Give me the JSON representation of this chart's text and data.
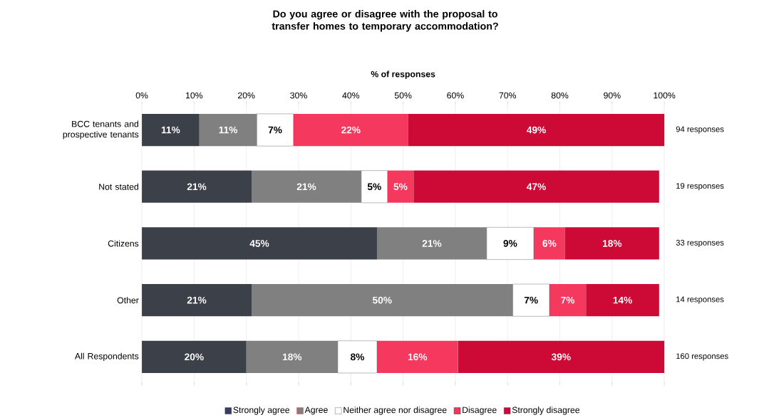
{
  "chart_data": {
    "type": "bar",
    "orientation": "horizontal",
    "stacked": true,
    "title": "Do you agree or disagree with the proposal to transfer homes to temporary accommodation?",
    "xlabel": "% of responses",
    "categories": [
      "BCC tenants and prospective tenants",
      "Not stated",
      "Citizens",
      "Other",
      "All Respondents"
    ],
    "series": [
      {
        "name": "Strongly agree",
        "color": "#3c4048",
        "values": [
          11,
          21,
          45,
          21,
          20
        ],
        "value_labels": [
          "11%",
          "21%",
          "45%",
          "21%",
          "20%"
        ]
      },
      {
        "name": "Agree",
        "color": "#808080",
        "values": [
          11,
          21,
          21,
          50,
          17.5
        ],
        "value_labels": [
          "11%",
          "21%",
          "21%",
          "50%",
          "18%"
        ]
      },
      {
        "name": "Neither agree nor disagree",
        "color": "#ffffff",
        "values": [
          7,
          5,
          9,
          7,
          7.5
        ],
        "value_labels": [
          "7%",
          "5%",
          "9%",
          "7%",
          "8%"
        ]
      },
      {
        "name": "Disagree",
        "color": "#f5385e",
        "values": [
          22,
          5,
          6,
          7,
          15.5
        ],
        "value_labels": [
          "22%",
          "5%",
          "6%",
          "7%",
          "16%"
        ]
      },
      {
        "name": "Strongly disagree",
        "color": "#cc0a35",
        "values": [
          49,
          47,
          18,
          14,
          39.5
        ],
        "value_labels": [
          "49%",
          "47%",
          "18%",
          "14%",
          "39%"
        ]
      }
    ],
    "xlim": [
      0,
      100
    ],
    "xticks": [
      {
        "value": 0,
        "label": "0%"
      },
      {
        "value": 10,
        "label": "10%"
      },
      {
        "value": 20,
        "label": "20%"
      },
      {
        "value": 30,
        "label": "30%"
      },
      {
        "value": 40,
        "label": "40%"
      },
      {
        "value": 50,
        "label": "50%"
      },
      {
        "value": 60,
        "label": "60%"
      },
      {
        "value": 70,
        "label": "70%"
      },
      {
        "value": 80,
        "label": "80%"
      },
      {
        "value": 90,
        "label": "90%"
      },
      {
        "value": 100,
        "label": "100%"
      }
    ],
    "grid": "x",
    "legend": "bottom",
    "annotations": [
      "94 responses",
      "19 responses",
      "33 responses",
      "14 responses",
      "160 responses"
    ]
  }
}
